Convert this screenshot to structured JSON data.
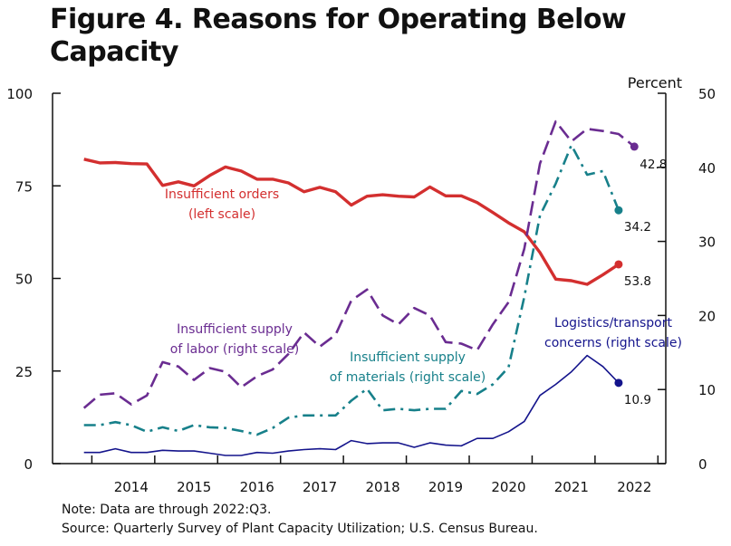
{
  "chart_data": {
    "type": "line",
    "title": "Figure 4. Reasons for Operating Below Capacity",
    "xlabel": "",
    "ylabel_left": "",
    "ylabel_right": "Percent",
    "left_axis": {
      "ticks": [
        0,
        25,
        50,
        75,
        100
      ],
      "ylim": [
        0,
        100
      ]
    },
    "right_axis": {
      "ticks": [
        0,
        10,
        20,
        30,
        40,
        50
      ],
      "ylim": [
        0,
        50
      ]
    },
    "x_ticks": [
      "2014",
      "2015",
      "2016",
      "2017",
      "2018",
      "2019",
      "2020",
      "2021",
      "2022"
    ],
    "xlim": [
      2013.25,
      2023.0
    ],
    "grid": false,
    "legend": "inline labels",
    "series": [
      {
        "name": "Insufficient orders (left scale)",
        "label_lines": [
          "Insufficient orders",
          "(left scale)"
        ],
        "axis": "left",
        "color": "#d32f2f",
        "style": "solid",
        "end_label": "53.8",
        "x": [
          2013.75,
          2014.0,
          2014.25,
          2014.5,
          2014.75,
          2015.0,
          2015.25,
          2015.5,
          2015.75,
          2016.0,
          2016.25,
          2016.5,
          2016.75,
          2017.0,
          2017.25,
          2017.5,
          2017.75,
          2018.0,
          2018.25,
          2018.5,
          2018.75,
          2019.0,
          2019.25,
          2019.5,
          2019.75,
          2020.0,
          2020.25,
          2020.5,
          2020.75,
          2021.0,
          2021.25,
          2021.5,
          2021.75,
          2022.0,
          2022.25,
          2022.5
        ],
        "y": [
          82.2,
          81.2,
          81.3,
          81.0,
          80.9,
          75.1,
          76.1,
          75.0,
          77.8,
          80.1,
          79.0,
          76.8,
          76.8,
          75.8,
          73.4,
          74.6,
          73.4,
          69.8,
          72.2,
          72.6,
          72.2,
          72.0,
          74.7,
          72.3,
          72.3,
          70.5,
          67.8,
          65.0,
          62.6,
          57.0,
          49.8,
          49.4,
          48.4,
          51.0,
          53.8,
          null
        ]
      },
      {
        "name": "Insufficient supply of labor (right scale)",
        "label_lines": [
          "Insufficient supply",
          "of labor (right scale)"
        ],
        "axis": "right",
        "color": "#6a2c91",
        "style": "dashed",
        "end_label": "42.8",
        "x": [
          2013.75,
          2014.0,
          2014.25,
          2014.5,
          2014.75,
          2015.0,
          2015.25,
          2015.5,
          2015.75,
          2016.0,
          2016.25,
          2016.5,
          2016.75,
          2017.0,
          2017.25,
          2017.5,
          2017.75,
          2018.0,
          2018.25,
          2018.5,
          2018.75,
          2019.0,
          2019.25,
          2019.5,
          2019.75,
          2020.0,
          2020.25,
          2020.5,
          2020.75,
          2021.0,
          2021.25,
          2021.5,
          2021.75,
          2022.0,
          2022.25,
          2022.5
        ],
        "y": [
          7.5,
          9.3,
          9.5,
          8.0,
          9.2,
          13.7,
          13.1,
          11.3,
          12.9,
          12.4,
          10.3,
          11.8,
          12.7,
          14.8,
          17.7,
          15.8,
          17.4,
          22.0,
          23.5,
          20.0,
          18.8,
          21.0,
          20.0,
          16.4,
          16.2,
          15.3,
          18.8,
          21.8,
          29.0,
          40.5,
          46.2,
          43.5,
          45.2,
          44.9,
          44.5,
          42.8
        ]
      },
      {
        "name": "Insufficient supply of materials (right scale)",
        "label_lines": [
          "Insufficient supply",
          "of materials (right scale)"
        ],
        "axis": "right",
        "color": "#17808a",
        "style": "dashdot",
        "end_label": "34.2",
        "x": [
          2013.75,
          2014.0,
          2014.25,
          2014.5,
          2014.75,
          2015.0,
          2015.25,
          2015.5,
          2015.75,
          2016.0,
          2016.25,
          2016.5,
          2016.75,
          2017.0,
          2017.25,
          2017.5,
          2017.75,
          2018.0,
          2018.25,
          2018.5,
          2018.75,
          2019.0,
          2019.25,
          2019.5,
          2019.75,
          2020.0,
          2020.25,
          2020.5,
          2020.75,
          2021.0,
          2021.25,
          2021.5,
          2021.75,
          2022.0,
          2022.25,
          2022.5
        ],
        "y": [
          5.2,
          5.2,
          5.6,
          5.2,
          4.3,
          4.9,
          4.4,
          5.2,
          4.9,
          4.8,
          4.4,
          3.9,
          4.8,
          6.2,
          6.5,
          6.5,
          6.5,
          8.5,
          10.1,
          7.2,
          7.4,
          7.2,
          7.4,
          7.4,
          9.8,
          9.4,
          10.7,
          13.0,
          22.5,
          33.5,
          37.8,
          43.0,
          39.0,
          39.5,
          34.2,
          null
        ]
      },
      {
        "name": "Logistics/transport concerns (right scale)",
        "label_lines": [
          "Logistics/transport",
          "concerns (right scale)"
        ],
        "axis": "right",
        "color": "#14148c",
        "style": "solid",
        "end_label": "10.9",
        "x": [
          2013.75,
          2014.0,
          2014.25,
          2014.5,
          2014.75,
          2015.0,
          2015.25,
          2015.5,
          2015.75,
          2016.0,
          2016.25,
          2016.5,
          2016.75,
          2017.0,
          2017.25,
          2017.5,
          2017.75,
          2018.0,
          2018.25,
          2018.5,
          2018.75,
          2019.0,
          2019.25,
          2019.5,
          2019.75,
          2020.0,
          2020.25,
          2020.5,
          2020.75,
          2021.0,
          2021.25,
          2021.5,
          2021.75,
          2022.0,
          2022.25,
          2022.5
        ],
        "y": [
          1.5,
          1.5,
          2.0,
          1.5,
          1.5,
          1.8,
          1.7,
          1.7,
          1.4,
          1.1,
          1.1,
          1.5,
          1.4,
          1.7,
          1.9,
          2.0,
          1.9,
          3.1,
          2.7,
          2.8,
          2.8,
          2.2,
          2.8,
          2.5,
          2.4,
          3.4,
          3.4,
          4.3,
          5.7,
          9.2,
          10.7,
          12.4,
          14.6,
          13.1,
          10.9,
          null
        ]
      }
    ]
  },
  "footer": {
    "note": "Note: Data are through 2022:Q3.",
    "source": "Source: Quarterly Survey of Plant Capacity Utilization; U.S. Census Bureau."
  }
}
